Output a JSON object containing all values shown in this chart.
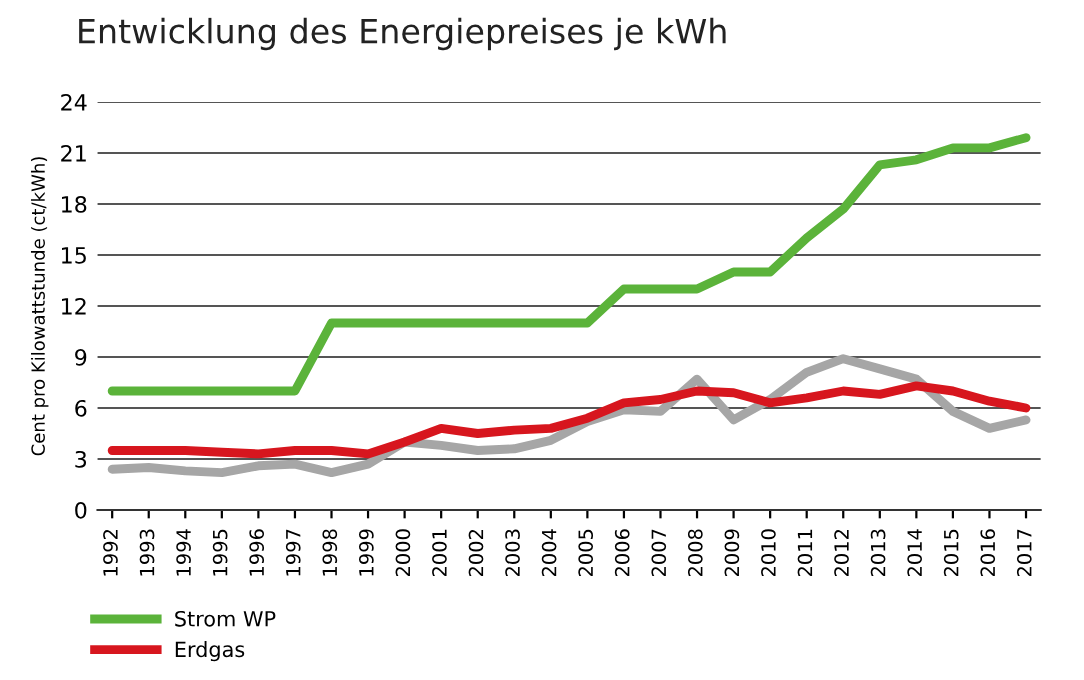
{
  "chart_data": {
    "type": "line",
    "title": "Entwicklung des Energiepreises je kWh",
    "ylabel": "Cent pro Kilowattstunde (ct/kWh)",
    "categories": [
      "1992",
      "1993",
      "1994",
      "1995",
      "1996",
      "1997",
      "1998",
      "1999",
      "2000",
      "2001",
      "2002",
      "2003",
      "2004",
      "2005",
      "2006",
      "2007",
      "2008",
      "2009",
      "2010",
      "2011",
      "2012",
      "2013",
      "2014",
      "2015",
      "2016",
      "2017"
    ],
    "series": [
      {
        "color": "#a6a6a6",
        "values": [
          2.4,
          2.5,
          2.3,
          2.2,
          2.6,
          2.7,
          2.2,
          2.7,
          4.0,
          3.8,
          3.5,
          3.6,
          4.1,
          5.2,
          5.9,
          5.8,
          7.7,
          5.3,
          6.5,
          8.1,
          8.9,
          8.3,
          7.7,
          5.8,
          4.8,
          5.3
        ]
      },
      {
        "name": "Strom WP",
        "color": "#5bb33a",
        "values": [
          7,
          7,
          7,
          7,
          7,
          7,
          11,
          11,
          11,
          11,
          11,
          11,
          11,
          11,
          13,
          13,
          13,
          14,
          14,
          16,
          17.7,
          20.3,
          20.6,
          21.3,
          21.3,
          21.9
        ]
      },
      {
        "name": "Erdgas",
        "color": "#d7161e",
        "values": [
          3.5,
          3.5,
          3.5,
          3.4,
          3.3,
          3.5,
          3.5,
          3.3,
          4.0,
          4.8,
          4.5,
          4.7,
          4.8,
          5.4,
          6.3,
          6.5,
          7.0,
          6.9,
          6.3,
          6.6,
          7.0,
          6.8,
          7.3,
          7.0,
          6.4,
          6.0
        ]
      }
    ],
    "ylim": [
      0,
      24
    ],
    "yticks": [
      0,
      3,
      6,
      9,
      12,
      15,
      18,
      21,
      24
    ],
    "grid": "y",
    "legend": "bottom left",
    "marker": "none",
    "line_style": "solid"
  }
}
